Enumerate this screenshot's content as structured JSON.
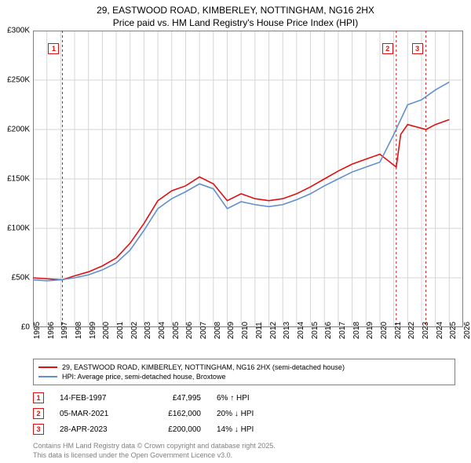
{
  "title_line1": "29, EASTWOOD ROAD, KIMBERLEY, NOTTINGHAM, NG16 2HX",
  "title_line2": "Price paid vs. HM Land Registry's House Price Index (HPI)",
  "chart": {
    "type": "line",
    "background_color": "#ffffff",
    "grid_color": "#d6d6d6",
    "border_color": "#808080",
    "x_axis": {
      "min": 1995,
      "max": 2026,
      "ticks": [
        1995,
        1996,
        1997,
        1998,
        1999,
        2000,
        2001,
        2002,
        2003,
        2004,
        2005,
        2006,
        2007,
        2008,
        2009,
        2010,
        2011,
        2012,
        2013,
        2014,
        2015,
        2016,
        2017,
        2018,
        2019,
        2020,
        2021,
        2022,
        2023,
        2024,
        2025,
        2026
      ],
      "label_fontsize": 10
    },
    "y_axis": {
      "min": 0,
      "max": 300000,
      "ticks": [
        0,
        50000,
        100000,
        150000,
        200000,
        250000,
        300000
      ],
      "tick_labels": [
        "£0",
        "£50K",
        "£100K",
        "£150K",
        "£200K",
        "£250K",
        "£300K"
      ],
      "label_fontsize": 10
    },
    "series": [
      {
        "name": "property",
        "color": "#e01010",
        "width": 1.6,
        "points": [
          [
            1995,
            50000
          ],
          [
            1996,
            49000
          ],
          [
            1997.12,
            47995
          ],
          [
            1998,
            52000
          ],
          [
            1999,
            56000
          ],
          [
            2000,
            62000
          ],
          [
            2001,
            70000
          ],
          [
            2002,
            85000
          ],
          [
            2003,
            105000
          ],
          [
            2004,
            128000
          ],
          [
            2005,
            138000
          ],
          [
            2006,
            143000
          ],
          [
            2007,
            152000
          ],
          [
            2008,
            145000
          ],
          [
            2009,
            128000
          ],
          [
            2010,
            135000
          ],
          [
            2011,
            130000
          ],
          [
            2012,
            128000
          ],
          [
            2013,
            130000
          ],
          [
            2014,
            135000
          ],
          [
            2015,
            142000
          ],
          [
            2016,
            150000
          ],
          [
            2017,
            158000
          ],
          [
            2018,
            165000
          ],
          [
            2019,
            170000
          ],
          [
            2020,
            175000
          ],
          [
            2021.18,
            162000
          ],
          [
            2021.5,
            195000
          ],
          [
            2022,
            205000
          ],
          [
            2023.32,
            200000
          ],
          [
            2024,
            205000
          ],
          [
            2025,
            210000
          ]
        ]
      },
      {
        "name": "hpi",
        "color": "#6090d0",
        "width": 1.6,
        "points": [
          [
            1995,
            48000
          ],
          [
            1996,
            47000
          ],
          [
            1997,
            48000
          ],
          [
            1998,
            50000
          ],
          [
            1999,
            53000
          ],
          [
            2000,
            58000
          ],
          [
            2001,
            65000
          ],
          [
            2002,
            78000
          ],
          [
            2003,
            98000
          ],
          [
            2004,
            120000
          ],
          [
            2005,
            130000
          ],
          [
            2006,
            137000
          ],
          [
            2007,
            145000
          ],
          [
            2008,
            140000
          ],
          [
            2009,
            120000
          ],
          [
            2010,
            127000
          ],
          [
            2011,
            124000
          ],
          [
            2012,
            122000
          ],
          [
            2013,
            124000
          ],
          [
            2014,
            129000
          ],
          [
            2015,
            135000
          ],
          [
            2016,
            143000
          ],
          [
            2017,
            150000
          ],
          [
            2018,
            157000
          ],
          [
            2019,
            162000
          ],
          [
            2020,
            167000
          ],
          [
            2021,
            195000
          ],
          [
            2022,
            225000
          ],
          [
            2023,
            230000
          ],
          [
            2024,
            240000
          ],
          [
            2025,
            248000
          ]
        ]
      }
    ],
    "markers": [
      {
        "n": "1",
        "year": 1997.12,
        "color": "#e01010"
      },
      {
        "n": "2",
        "year": 2021.18,
        "color": "#e01010"
      },
      {
        "n": "3",
        "year": 2023.32,
        "color": "#e01010"
      }
    ]
  },
  "legend": {
    "items": [
      {
        "color": "#e01010",
        "label": "29, EASTWOOD ROAD, KIMBERLEY, NOTTINGHAM, NG16 2HX (semi-detached house)"
      },
      {
        "color": "#6090d0",
        "label": "HPI: Average price, semi-detached house, Broxtowe"
      }
    ]
  },
  "sales": [
    {
      "n": "1",
      "date": "14-FEB-1997",
      "price": "£47,995",
      "pct": "6% ↑ HPI",
      "color": "#e01010"
    },
    {
      "n": "2",
      "date": "05-MAR-2021",
      "price": "£162,000",
      "pct": "20% ↓ HPI",
      "color": "#e01010"
    },
    {
      "n": "3",
      "date": "28-APR-2023",
      "price": "£200,000",
      "pct": "14% ↓ HPI",
      "color": "#e01010"
    }
  ],
  "footer_line1": "Contains HM Land Registry data © Crown copyright and database right 2025.",
  "footer_line2": "This data is licensed under the Open Government Licence v3.0."
}
